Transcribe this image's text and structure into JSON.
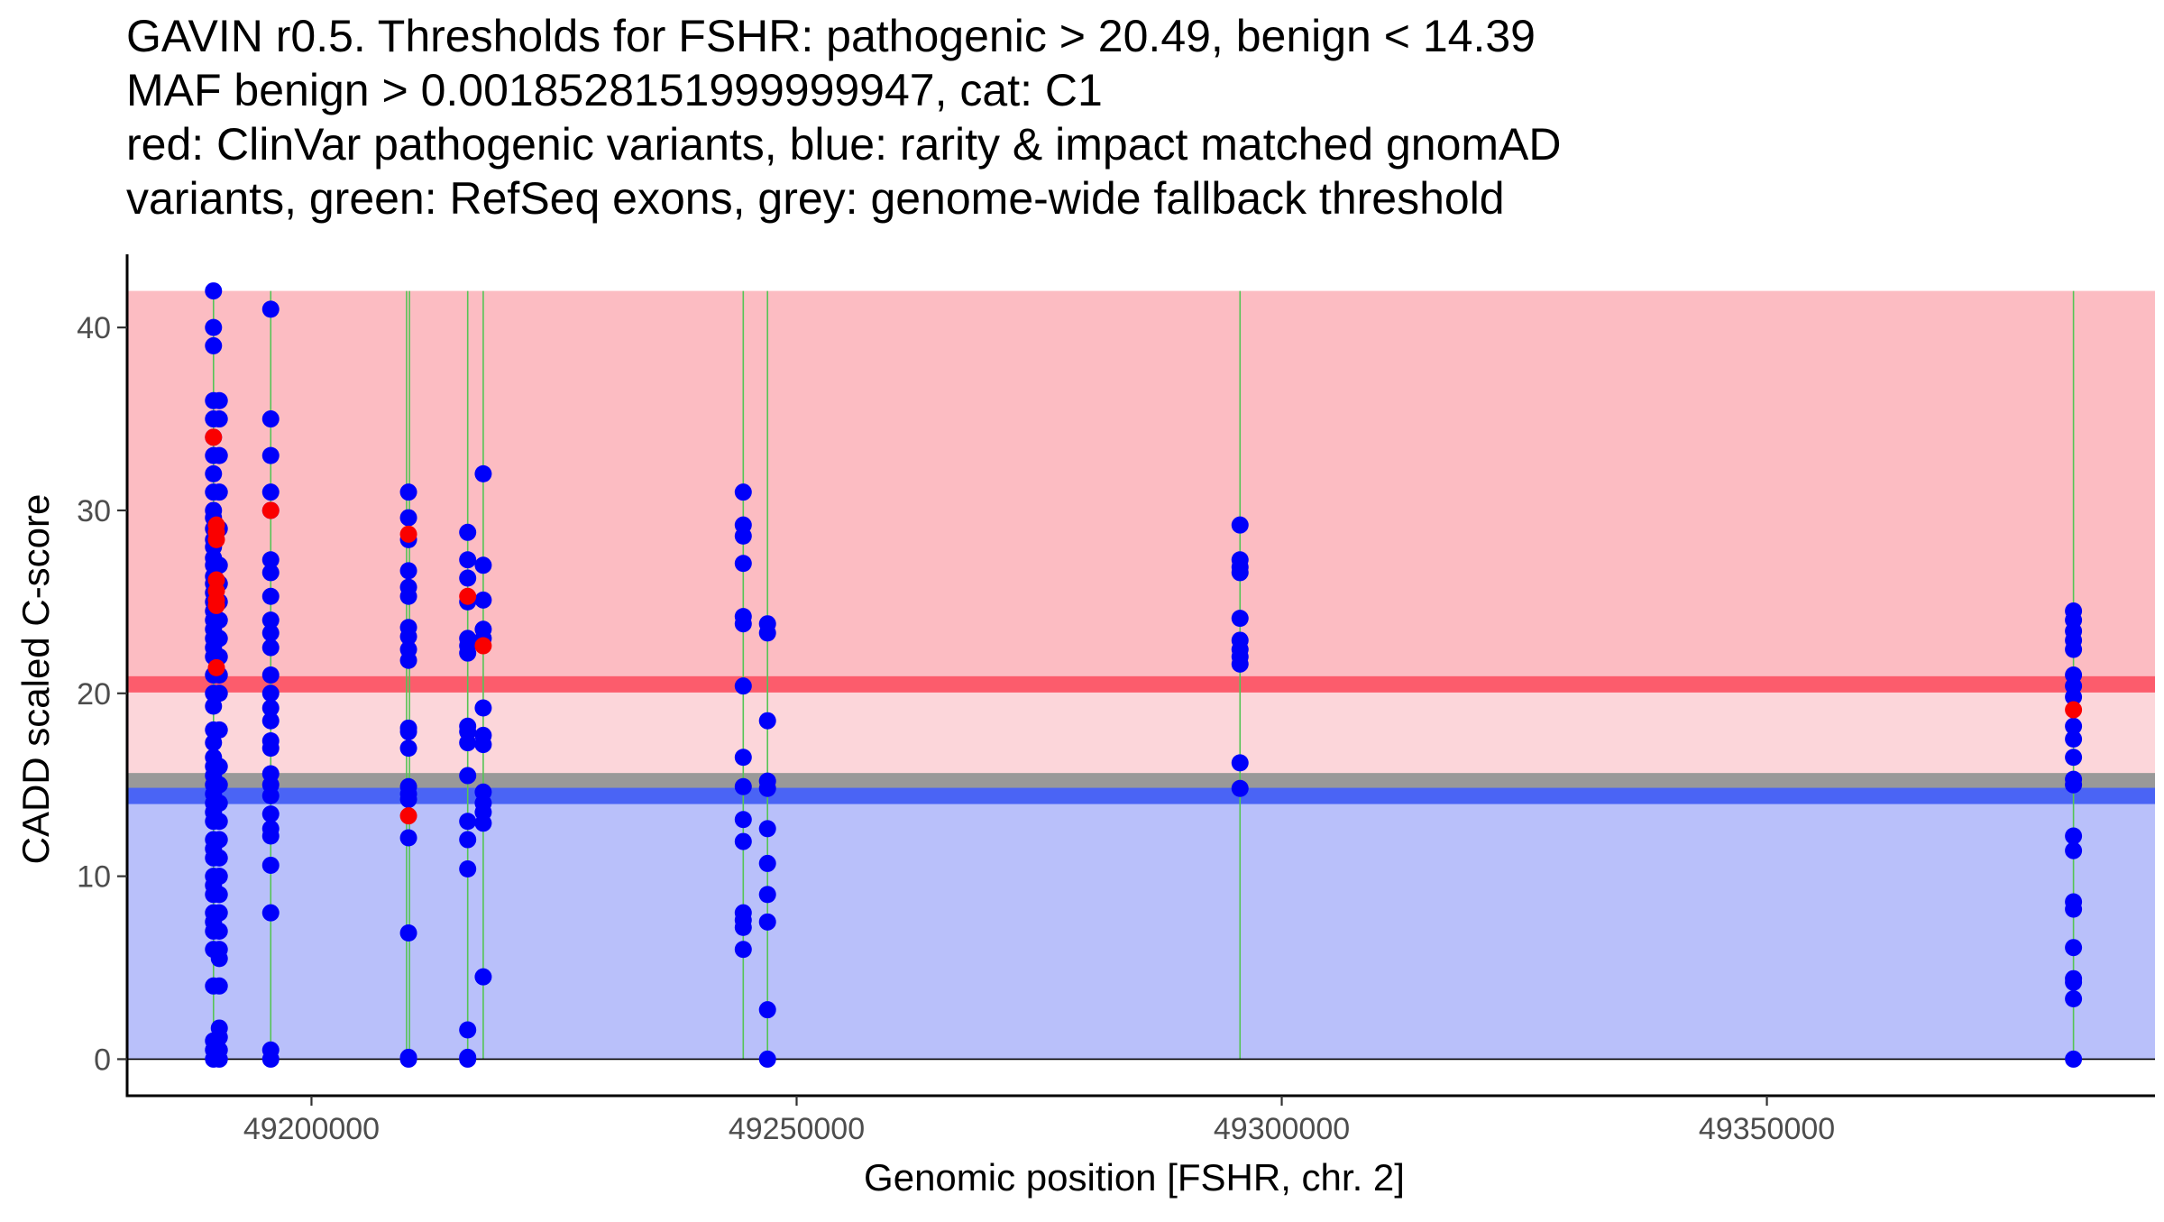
{
  "chart_data": {
    "type": "scatter",
    "title_lines": [
      "GAVIN r0.5. Thresholds for FSHR: pathogenic > 20.49, benign < 14.39",
      "MAF benign > 0.0018528151999999947, cat: C1",
      "red: ClinVar pathogenic variants, blue: rarity & impact matched gnomAD",
      "variants, green: RefSeq exons, grey: genome-wide fallback threshold"
    ],
    "xlabel": "Genomic position [FSHR, chr. 2]",
    "ylabel": "CADD scaled C-score",
    "xlim": [
      49181000,
      49390000
    ],
    "ylim": [
      -2,
      44
    ],
    "x_ticks": [
      49200000,
      49250000,
      49300000,
      49350000
    ],
    "x_tick_labels": [
      "49200000",
      "49250000",
      "49300000",
      "49350000"
    ],
    "y_ticks": [
      0,
      10,
      20,
      30,
      40
    ],
    "y_tick_labels": [
      "0",
      "10",
      "20",
      "30",
      "40"
    ],
    "regions": {
      "pathogenic": {
        "from": 20.49,
        "to": 42,
        "color": "#fcbcc2"
      },
      "intermediate": {
        "from": 14.39,
        "to": 20.49,
        "color": "#fcd6da"
      },
      "benign": {
        "from": 0,
        "to": 14.39,
        "color": "#b9c0fa"
      },
      "x_from": 49181000
    },
    "thresholds": {
      "pathogenic": {
        "value": 20.49,
        "color": "#fc5c6c"
      },
      "benign": {
        "value": 14.39,
        "color": "#4a64f5"
      },
      "fallback": {
        "value": 15.2,
        "color": "#999999"
      }
    },
    "exons": {
      "color": "#55c455",
      "positions": [
        49189900,
        49195800,
        49209800,
        49210100,
        49216100,
        49217700,
        49244500,
        49247000,
        49295700,
        49381600
      ]
    },
    "series": [
      {
        "name": "rarity & impact matched gnomAD variants",
        "color": "#0000fa",
        "points": [
          [
            49189900,
            42
          ],
          [
            49189900,
            40
          ],
          [
            49189900,
            39
          ],
          [
            49189900,
            36
          ],
          [
            49189900,
            35
          ],
          [
            49189900,
            34
          ],
          [
            49189900,
            33
          ],
          [
            49189900,
            32
          ],
          [
            49189900,
            31
          ],
          [
            49189900,
            30
          ],
          [
            49189900,
            29.6
          ],
          [
            49189900,
            29
          ],
          [
            49189900,
            28.4
          ],
          [
            49189900,
            28
          ],
          [
            49189900,
            27.4
          ],
          [
            49189900,
            27
          ],
          [
            49189900,
            26.4
          ],
          [
            49189900,
            26
          ],
          [
            49189900,
            25.5
          ],
          [
            49189900,
            25
          ],
          [
            49189900,
            24.5
          ],
          [
            49189900,
            24
          ],
          [
            49189900,
            23.5
          ],
          [
            49189900,
            23
          ],
          [
            49189900,
            22.5
          ],
          [
            49189900,
            22
          ],
          [
            49189900,
            21
          ],
          [
            49189900,
            20
          ],
          [
            49189900,
            19.3
          ],
          [
            49189900,
            18
          ],
          [
            49189900,
            17.3
          ],
          [
            49189900,
            16.5
          ],
          [
            49189900,
            16
          ],
          [
            49189900,
            15.5
          ],
          [
            49189900,
            15
          ],
          [
            49189900,
            14.5
          ],
          [
            49189900,
            14
          ],
          [
            49189900,
            13.5
          ],
          [
            49189900,
            13
          ],
          [
            49189900,
            12
          ],
          [
            49189900,
            11.5
          ],
          [
            49189900,
            11
          ],
          [
            49189900,
            10
          ],
          [
            49189900,
            9.5
          ],
          [
            49189900,
            9
          ],
          [
            49189900,
            8
          ],
          [
            49189900,
            7.5
          ],
          [
            49189900,
            7
          ],
          [
            49189900,
            6
          ],
          [
            49189900,
            4
          ],
          [
            49189900,
            1
          ],
          [
            49189900,
            0.5
          ],
          [
            49189900,
            0
          ],
          [
            49190500,
            36
          ],
          [
            49190500,
            35
          ],
          [
            49190500,
            33
          ],
          [
            49190500,
            31
          ],
          [
            49190500,
            29
          ],
          [
            49190500,
            27
          ],
          [
            49190500,
            26
          ],
          [
            49190500,
            25
          ],
          [
            49190500,
            24
          ],
          [
            49190500,
            23
          ],
          [
            49190500,
            22
          ],
          [
            49190500,
            21
          ],
          [
            49190500,
            20
          ],
          [
            49190500,
            18
          ],
          [
            49190500,
            16
          ],
          [
            49190500,
            15
          ],
          [
            49190500,
            14
          ],
          [
            49190500,
            13
          ],
          [
            49190500,
            12
          ],
          [
            49190500,
            11
          ],
          [
            49190500,
            10
          ],
          [
            49190500,
            9
          ],
          [
            49190500,
            8
          ],
          [
            49190500,
            7
          ],
          [
            49190500,
            6
          ],
          [
            49190500,
            5.5
          ],
          [
            49190500,
            4
          ],
          [
            49190500,
            1.7
          ],
          [
            49190500,
            1.2
          ],
          [
            49190500,
            0.5
          ],
          [
            49190500,
            0
          ],
          [
            49195800,
            41
          ],
          [
            49195800,
            35
          ],
          [
            49195800,
            33
          ],
          [
            49195800,
            31
          ],
          [
            49195800,
            30
          ],
          [
            49195800,
            27.3
          ],
          [
            49195800,
            26.6
          ],
          [
            49195800,
            25.3
          ],
          [
            49195800,
            24
          ],
          [
            49195800,
            23.3
          ],
          [
            49195800,
            22.5
          ],
          [
            49195800,
            21
          ],
          [
            49195800,
            20
          ],
          [
            49195800,
            19.2
          ],
          [
            49195800,
            18.5
          ],
          [
            49195800,
            17.4
          ],
          [
            49195800,
            17
          ],
          [
            49195800,
            15.6
          ],
          [
            49195800,
            15
          ],
          [
            49195800,
            14.4
          ],
          [
            49195800,
            13.4
          ],
          [
            49195800,
            12.6
          ],
          [
            49195800,
            12.2
          ],
          [
            49195800,
            10.6
          ],
          [
            49195800,
            8
          ],
          [
            49195800,
            0.5
          ],
          [
            49195800,
            0
          ],
          [
            49210000,
            31
          ],
          [
            49210000,
            29.6
          ],
          [
            49210000,
            28.4
          ],
          [
            49210000,
            26.7
          ],
          [
            49210000,
            25.8
          ],
          [
            49210000,
            25.3
          ],
          [
            49210000,
            23.6
          ],
          [
            49210000,
            23.1
          ],
          [
            49210000,
            22.4
          ],
          [
            49210000,
            21.8
          ],
          [
            49210000,
            18.1
          ],
          [
            49210000,
            17.9
          ],
          [
            49210000,
            17
          ],
          [
            49210000,
            14.9
          ],
          [
            49210000,
            14.5
          ],
          [
            49210000,
            14.2
          ],
          [
            49210000,
            12.1
          ],
          [
            49210000,
            6.9
          ],
          [
            49210000,
            0.1
          ],
          [
            49210000,
            0
          ],
          [
            49216100,
            28.8
          ],
          [
            49216100,
            27.3
          ],
          [
            49216100,
            26.3
          ],
          [
            49216100,
            25
          ],
          [
            49216100,
            23
          ],
          [
            49216100,
            22.6
          ],
          [
            49216100,
            22.2
          ],
          [
            49216100,
            18.2
          ],
          [
            49216100,
            17.9
          ],
          [
            49216100,
            17.3
          ],
          [
            49216100,
            15.5
          ],
          [
            49216100,
            13
          ],
          [
            49216100,
            12
          ],
          [
            49216100,
            10.4
          ],
          [
            49216100,
            1.6
          ],
          [
            49216100,
            0.1
          ],
          [
            49216100,
            0
          ],
          [
            49217700,
            32
          ],
          [
            49217700,
            27
          ],
          [
            49217700,
            25.1
          ],
          [
            49217700,
            23.5
          ],
          [
            49217700,
            23
          ],
          [
            49217700,
            19.2
          ],
          [
            49217700,
            17.7
          ],
          [
            49217700,
            17.2
          ],
          [
            49217700,
            14.6
          ],
          [
            49217700,
            14
          ],
          [
            49217700,
            13.5
          ],
          [
            49217700,
            12.9
          ],
          [
            49217700,
            4.5
          ],
          [
            49244500,
            31
          ],
          [
            49244500,
            29.2
          ],
          [
            49244500,
            28.6
          ],
          [
            49244500,
            27.1
          ],
          [
            49244500,
            24.2
          ],
          [
            49244500,
            23.8
          ],
          [
            49244500,
            20.4
          ],
          [
            49244500,
            16.5
          ],
          [
            49244500,
            14.9
          ],
          [
            49244500,
            13.1
          ],
          [
            49244500,
            11.9
          ],
          [
            49244500,
            8
          ],
          [
            49244500,
            7.6
          ],
          [
            49244500,
            7.2
          ],
          [
            49244500,
            6
          ],
          [
            49247000,
            23.8
          ],
          [
            49247000,
            23.3
          ],
          [
            49247000,
            18.5
          ],
          [
            49247000,
            15.2
          ],
          [
            49247000,
            14.8
          ],
          [
            49247000,
            12.6
          ],
          [
            49247000,
            10.7
          ],
          [
            49247000,
            9
          ],
          [
            49247000,
            7.5
          ],
          [
            49247000,
            2.7
          ],
          [
            49247000,
            0
          ],
          [
            49295700,
            29.2
          ],
          [
            49295700,
            27.3
          ],
          [
            49295700,
            26.9
          ],
          [
            49295700,
            26.6
          ],
          [
            49295700,
            24.1
          ],
          [
            49295700,
            22.9
          ],
          [
            49295700,
            22.4
          ],
          [
            49295700,
            22
          ],
          [
            49295700,
            21.6
          ],
          [
            49295700,
            16.2
          ],
          [
            49295700,
            14.8
          ],
          [
            49381600,
            24.5
          ],
          [
            49381600,
            24
          ],
          [
            49381600,
            23.4
          ],
          [
            49381600,
            22.9
          ],
          [
            49381600,
            22.4
          ],
          [
            49381600,
            21
          ],
          [
            49381600,
            20.4
          ],
          [
            49381600,
            19.8
          ],
          [
            49381600,
            18.2
          ],
          [
            49381600,
            17.5
          ],
          [
            49381600,
            16.5
          ],
          [
            49381600,
            15.3
          ],
          [
            49381600,
            15
          ],
          [
            49381600,
            12.2
          ],
          [
            49381600,
            11.4
          ],
          [
            49381600,
            8.6
          ],
          [
            49381600,
            8.2
          ],
          [
            49381600,
            6.1
          ],
          [
            49381600,
            4.4
          ],
          [
            49381600,
            4.2
          ],
          [
            49381600,
            3.3
          ],
          [
            49381600,
            0
          ]
        ]
      },
      {
        "name": "ClinVar pathogenic variants",
        "color": "#fa0000",
        "points": [
          [
            49189900,
            34
          ],
          [
            49190200,
            29.2
          ],
          [
            49190200,
            28.8
          ],
          [
            49190200,
            28.4
          ],
          [
            49190200,
            26.2
          ],
          [
            49190200,
            25.6
          ],
          [
            49190200,
            25.1
          ],
          [
            49190200,
            24.8
          ],
          [
            49190200,
            21.4
          ],
          [
            49195800,
            30
          ],
          [
            49210000,
            28.7
          ],
          [
            49210000,
            13.3
          ],
          [
            49216100,
            25.3
          ],
          [
            49217700,
            22.6
          ],
          [
            49381600,
            19.1
          ]
        ]
      }
    ]
  }
}
